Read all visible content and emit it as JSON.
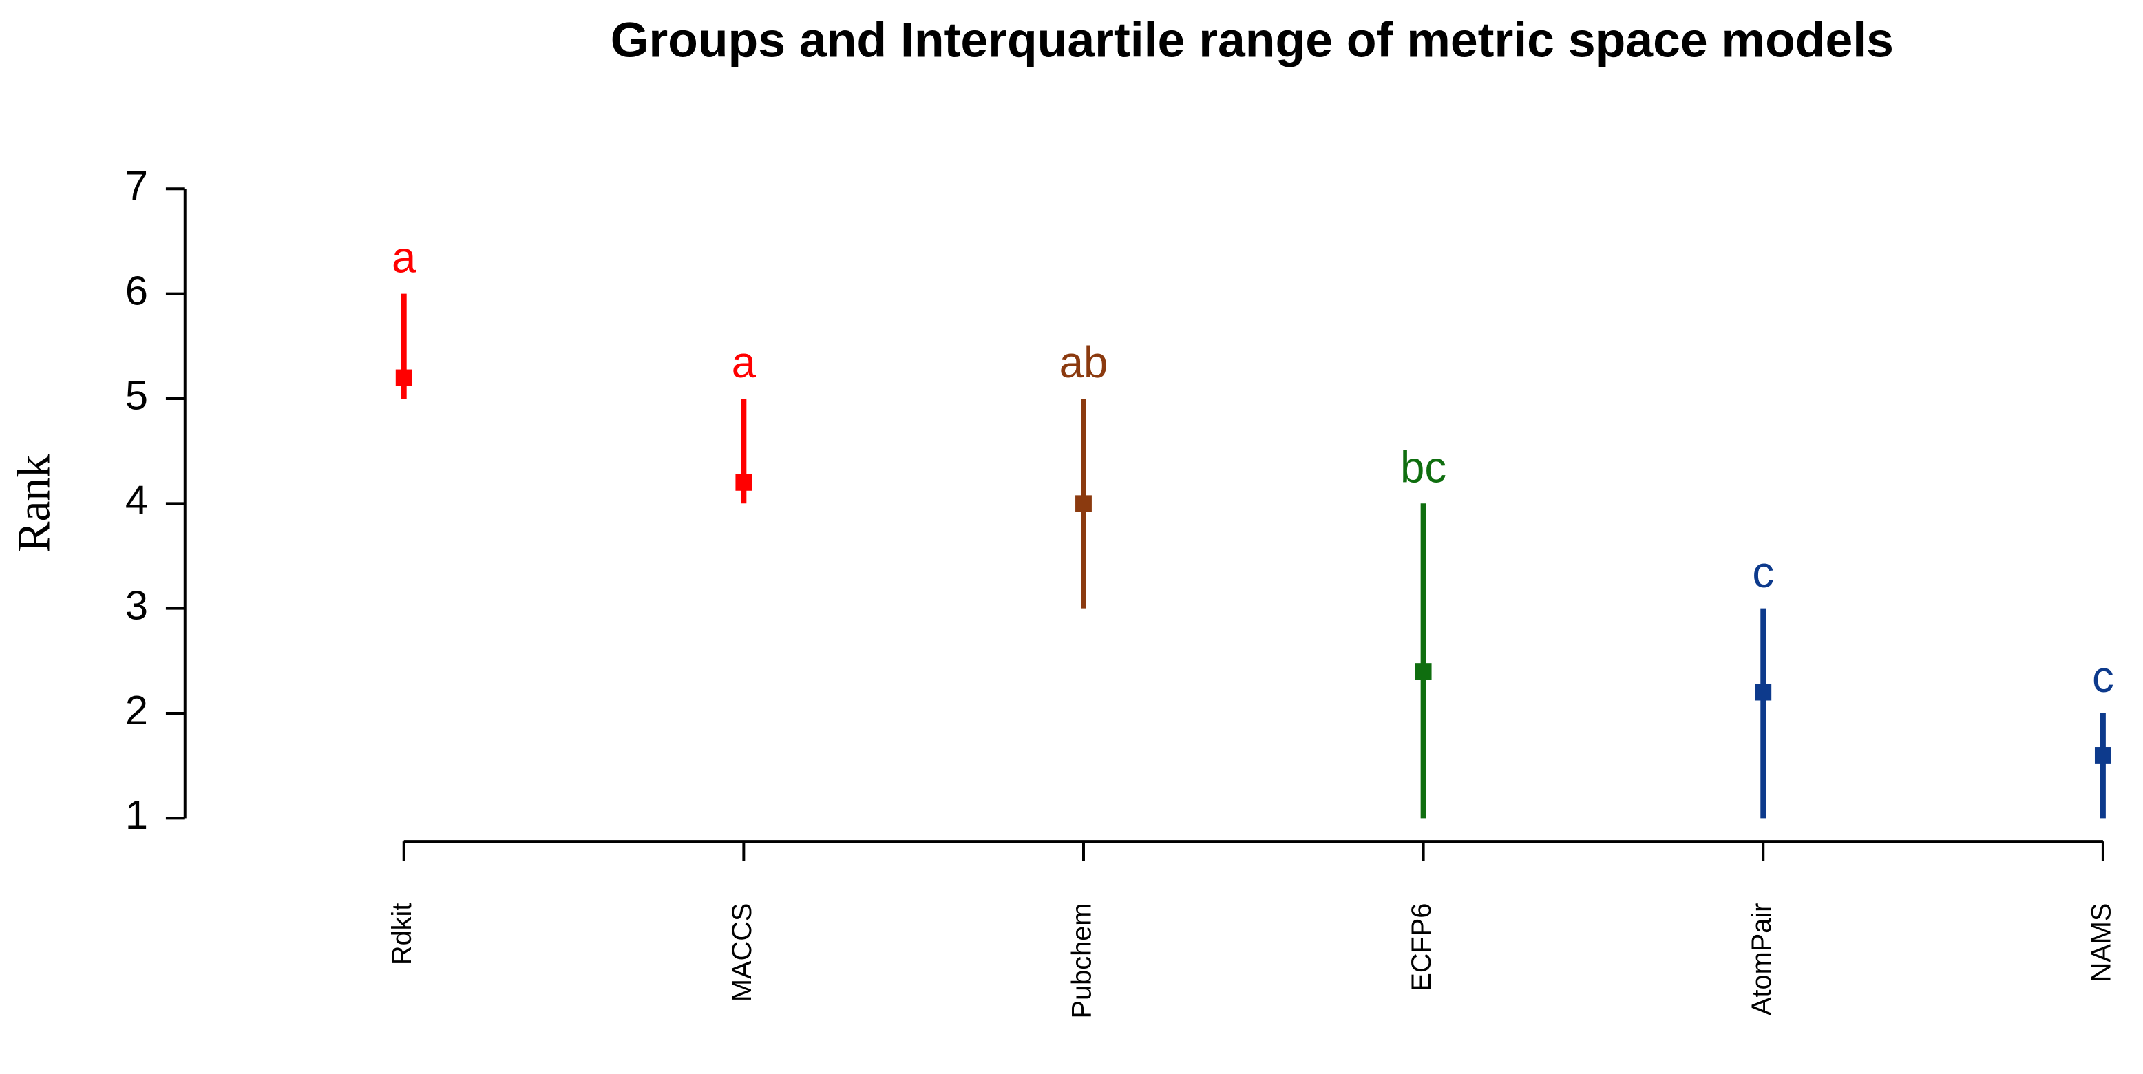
{
  "chart_data": {
    "type": "interval",
    "title": "Groups and Interquartile range of metric space models",
    "y_label": "Rank",
    "categories": [
      "Rdkit",
      "MACCS",
      "Pubchem",
      "ECFP6",
      "AtomPair",
      "NAMS"
    ],
    "values": [
      5.2,
      4.2,
      4,
      2.4,
      2.2,
      1.6
    ],
    "lower": [
      5,
      4,
      3,
      1,
      1,
      1
    ],
    "upper": [
      6,
      5,
      5,
      4,
      3,
      2
    ],
    "groups": [
      "a",
      "a",
      "ab",
      "bc",
      "c",
      "c"
    ],
    "colors": [
      "#ff0000",
      "#ff0000",
      "#8b3a0f",
      "#0f6e0f",
      "#0d3a8c",
      "#0d3a8c"
    ],
    "ylim": [
      1,
      7
    ],
    "yticks": [
      1,
      2,
      3,
      4,
      5,
      6,
      7
    ]
  }
}
